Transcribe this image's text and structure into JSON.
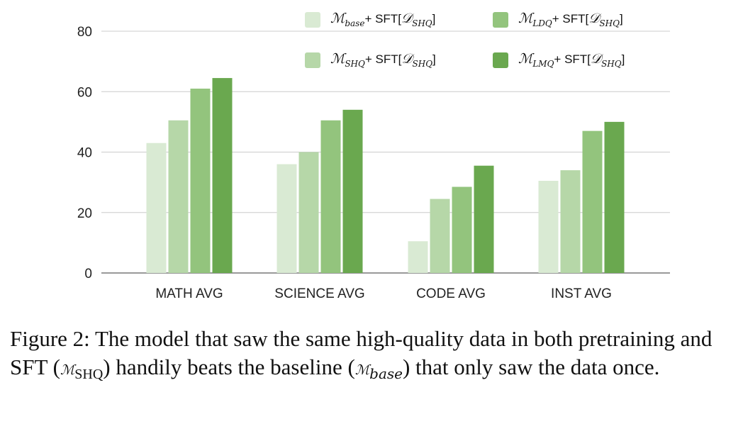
{
  "chart_data": {
    "type": "bar",
    "categories": [
      "MATH AVG",
      "SCIENCE AVG",
      "CODE AVG",
      "INST AVG"
    ],
    "series": [
      {
        "name": "M_base + SFT[D_SHQ]",
        "color": "#d9ead3",
        "values": [
          43,
          36,
          10.5,
          30.5
        ]
      },
      {
        "name": "M_SHQ + SFT[D_SHQ]",
        "color": "#b6d7a8",
        "values": [
          50.5,
          40,
          24.5,
          34
        ]
      },
      {
        "name": "M_LDQ + SFT[D_SHQ]",
        "color": "#93c47d",
        "values": [
          61,
          50.5,
          28.5,
          47
        ]
      },
      {
        "name": "M_LMQ + SFT[D_SHQ]",
        "color": "#6aa84f",
        "values": [
          64.5,
          54,
          35.5,
          50
        ]
      }
    ],
    "yticks": [
      "0",
      "20",
      "40",
      "60",
      "80"
    ],
    "ylim": [
      0,
      80
    ],
    "grid": true,
    "legend_position": "top-right",
    "xlabel": "",
    "ylabel": "",
    "title": ""
  },
  "legend": [
    {
      "m": "ℳ",
      "sub": "base",
      "mid": "+ SFT[",
      "d": "𝒟",
      "dsub": "SHQ",
      "end": "]"
    },
    {
      "m": "ℳ",
      "sub": "SHQ",
      "mid": "+ SFT[",
      "d": "𝒟",
      "dsub": "SHQ",
      "end": "]"
    },
    {
      "m": "ℳ",
      "sub": "LDQ",
      "mid": "+ SFT[",
      "d": "𝒟",
      "dsub": "SHQ",
      "end": "]"
    },
    {
      "m": "ℳ",
      "sub": "LMQ",
      "mid": "+ SFT[",
      "d": "𝒟",
      "dsub": "SHQ",
      "end": "]"
    }
  ],
  "caption": {
    "a": "Figure 2: The model that saw the same high-quality data in both pretraining and SFT (",
    "m1": "ℳ",
    "s1": "SHQ",
    "b": ") handily beats the baseline (",
    "m2": "ℳ",
    "s2": "base",
    "c": ") that only saw the data once."
  }
}
